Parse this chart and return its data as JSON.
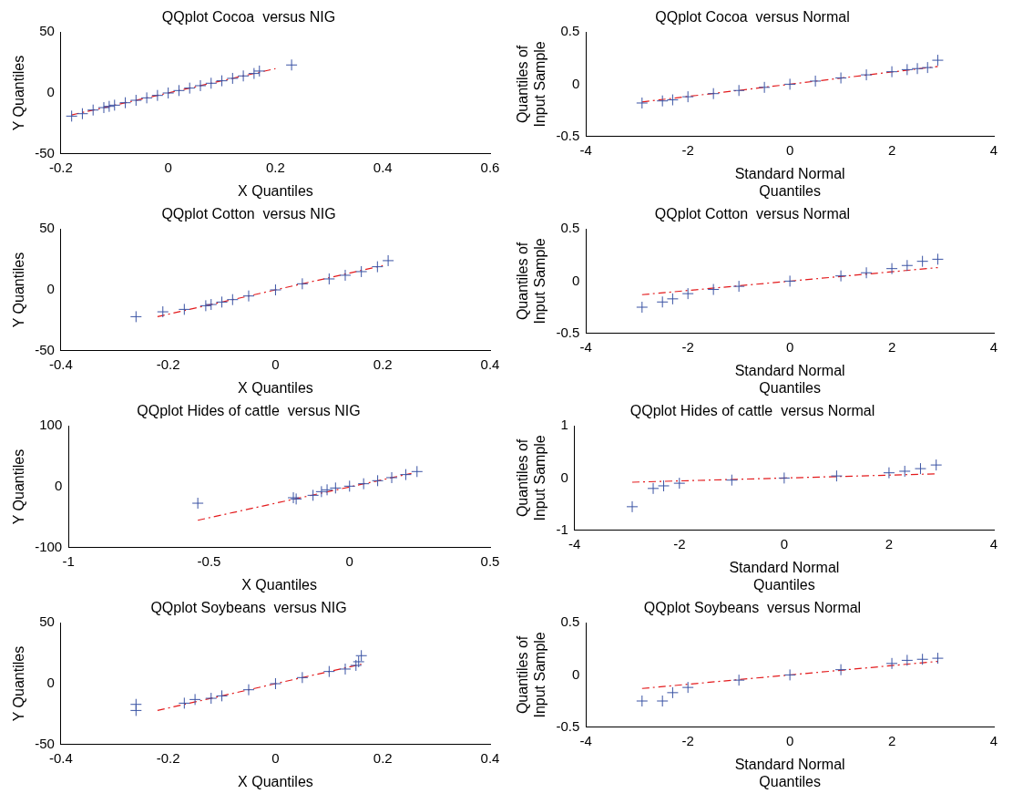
{
  "chart_data": [
    {
      "type": "scatter",
      "title": "QQplot Cocoa  versus NIG",
      "xlabel": "X Quantiles",
      "ylabel": "Y Quantiles",
      "xlim": [
        -0.2,
        0.6
      ],
      "ylim": [
        -50,
        50
      ],
      "xticks": [
        -0.2,
        0,
        0.2,
        0.4,
        0.6
      ],
      "yticks": [
        -50,
        0,
        50
      ],
      "series": [
        {
          "type": "scatter",
          "marker": "cross",
          "color": "#3a53a4",
          "x": [
            -0.18,
            -0.16,
            -0.14,
            -0.12,
            -0.11,
            -0.1,
            -0.08,
            -0.06,
            -0.04,
            -0.02,
            0,
            0.02,
            0.04,
            0.06,
            0.08,
            0.1,
            0.12,
            0.14,
            0.16,
            0.17,
            0.23
          ],
          "values": [
            -19,
            -17,
            -14,
            -12,
            -11,
            -10,
            -8,
            -6,
            -4,
            -2,
            0,
            2,
            4,
            6,
            8,
            10,
            12,
            14,
            16,
            18,
            23
          ]
        },
        {
          "type": "line",
          "marker": "none",
          "line_style": "dashed",
          "color": "#e31a1c",
          "x": [
            -0.18,
            0.2
          ],
          "values": [
            -18,
            20
          ]
        }
      ]
    },
    {
      "type": "scatter",
      "title": "QQplot Cocoa  versus Normal",
      "xlabel": "Standard Normal Quantiles",
      "ylabel": "Quantiles of Input Sample",
      "xlim": [
        -4,
        4
      ],
      "ylim": [
        -0.5,
        0.5
      ],
      "xticks": [
        -4,
        -2,
        0,
        2,
        4
      ],
      "yticks": [
        -0.5,
        0,
        0.5
      ],
      "series": [
        {
          "type": "scatter",
          "marker": "cross",
          "color": "#3a53a4",
          "x": [
            -2.9,
            -2.5,
            -2.3,
            -2,
            -1.5,
            -1,
            -0.5,
            0,
            0.5,
            1,
            1.5,
            2,
            2.3,
            2.5,
            2.7,
            2.9
          ],
          "values": [
            -0.18,
            -0.16,
            -0.15,
            -0.12,
            -0.09,
            -0.06,
            -0.03,
            0,
            0.03,
            0.06,
            0.09,
            0.12,
            0.14,
            0.15,
            0.16,
            0.23
          ]
        },
        {
          "type": "line",
          "marker": "none",
          "line_style": "dashed",
          "color": "#e31a1c",
          "x": [
            -2.9,
            2.9
          ],
          "values": [
            -0.17,
            0.17
          ]
        }
      ]
    },
    {
      "type": "scatter",
      "title": "QQplot Cotton  versus NIG",
      "xlabel": "X Quantiles",
      "ylabel": "Y Quantiles",
      "xlim": [
        -0.4,
        0.4
      ],
      "ylim": [
        -50,
        50
      ],
      "xticks": [
        -0.4,
        -0.2,
        0,
        0.2,
        0.4
      ],
      "yticks": [
        -50,
        0,
        50
      ],
      "series": [
        {
          "type": "scatter",
          "marker": "cross",
          "color": "#3a53a4",
          "x": [
            -0.26,
            -0.21,
            -0.17,
            -0.13,
            -0.12,
            -0.1,
            -0.08,
            -0.05,
            0,
            0.05,
            0.1,
            0.13,
            0.16,
            0.19,
            0.21
          ],
          "values": [
            -22,
            -18,
            -16,
            -13,
            -12,
            -10,
            -8,
            -5,
            0,
            5,
            9,
            12,
            15,
            19,
            24
          ]
        },
        {
          "type": "line",
          "marker": "none",
          "line_style": "dashed",
          "color": "#e31a1c",
          "x": [
            -0.22,
            0.2
          ],
          "values": [
            -22,
            20
          ]
        }
      ]
    },
    {
      "type": "scatter",
      "title": "QQplot Cotton  versus Normal",
      "xlabel": "Standard Normal Quantiles",
      "ylabel": "Quantiles of Input Sample",
      "xlim": [
        -4,
        4
      ],
      "ylim": [
        -0.5,
        0.5
      ],
      "xticks": [
        -4,
        -2,
        0,
        2,
        4
      ],
      "yticks": [
        -0.5,
        0,
        0.5
      ],
      "series": [
        {
          "type": "scatter",
          "marker": "cross",
          "color": "#3a53a4",
          "x": [
            -2.9,
            -2.5,
            -2.3,
            -2,
            -1.5,
            -1,
            0,
            1,
            1.5,
            2,
            2.3,
            2.6,
            2.9
          ],
          "values": [
            -0.25,
            -0.2,
            -0.17,
            -0.12,
            -0.08,
            -0.05,
            0,
            0.05,
            0.08,
            0.12,
            0.15,
            0.19,
            0.21
          ]
        },
        {
          "type": "line",
          "marker": "none",
          "line_style": "dashed",
          "color": "#e31a1c",
          "x": [
            -2.9,
            2.9
          ],
          "values": [
            -0.13,
            0.13
          ]
        }
      ]
    },
    {
      "type": "scatter",
      "title": "QQplot Hides of cattle  versus NIG",
      "xlabel": "X Quantiles",
      "ylabel": "Y Quantiles",
      "xlim": [
        -1,
        0.5
      ],
      "ylim": [
        -100,
        100
      ],
      "xticks": [
        -1,
        -0.5,
        0,
        0.5
      ],
      "yticks": [
        -100,
        0,
        100
      ],
      "series": [
        {
          "type": "scatter",
          "marker": "cross",
          "color": "#3a53a4",
          "x": [
            -0.54,
            -0.2,
            -0.19,
            -0.13,
            -0.1,
            -0.08,
            -0.05,
            0,
            0.05,
            0.1,
            0.15,
            0.2,
            0.24
          ],
          "values": [
            -27,
            -18,
            -20,
            -14,
            -8,
            -5,
            -2,
            1,
            5,
            10,
            15,
            20,
            25
          ]
        },
        {
          "type": "line",
          "marker": "none",
          "line_style": "dashed",
          "color": "#e31a1c",
          "x": [
            -0.54,
            0.22
          ],
          "values": [
            -55,
            22
          ]
        }
      ]
    },
    {
      "type": "scatter",
      "title": "QQplot Hides of cattle  versus Normal",
      "xlabel": "Standard Normal Quantiles",
      "ylabel": "Quantiles of Input Sample",
      "xlim": [
        -4,
        4
      ],
      "ylim": [
        -1,
        1
      ],
      "xticks": [
        -4,
        -2,
        0,
        2,
        4
      ],
      "yticks": [
        -1,
        0,
        1
      ],
      "series": [
        {
          "type": "scatter",
          "marker": "cross",
          "color": "#3a53a4",
          "x": [
            -2.9,
            -2.5,
            -2.3,
            -2,
            -1,
            0,
            1,
            2,
            2.3,
            2.6,
            2.9
          ],
          "values": [
            -0.55,
            -0.2,
            -0.15,
            -0.1,
            -0.04,
            0,
            0.04,
            0.1,
            0.13,
            0.18,
            0.25
          ]
        },
        {
          "type": "line",
          "marker": "none",
          "line_style": "dashed",
          "color": "#e31a1c",
          "x": [
            -2.9,
            2.9
          ],
          "values": [
            -0.08,
            0.08
          ]
        }
      ]
    },
    {
      "type": "scatter",
      "title": "QQplot Soybeans  versus NIG",
      "xlabel": "X Quantiles",
      "ylabel": "Y Quantiles",
      "xlim": [
        -0.4,
        0.4
      ],
      "ylim": [
        -50,
        50
      ],
      "xticks": [
        -0.4,
        -0.2,
        0,
        0.2,
        0.4
      ],
      "yticks": [
        -50,
        0,
        50
      ],
      "series": [
        {
          "type": "scatter",
          "marker": "cross",
          "color": "#3a53a4",
          "x": [
            -0.26,
            -0.26,
            -0.17,
            -0.15,
            -0.12,
            -0.1,
            -0.05,
            0,
            0.05,
            0.1,
            0.13,
            0.15,
            0.155,
            0.16
          ],
          "values": [
            -22,
            -17,
            -16,
            -13,
            -12,
            -10,
            -5,
            0,
            5,
            10,
            12,
            15,
            18,
            23
          ]
        },
        {
          "type": "line",
          "marker": "none",
          "line_style": "dashed",
          "color": "#e31a1c",
          "x": [
            -0.22,
            0.16
          ],
          "values": [
            -22,
            16
          ]
        }
      ]
    },
    {
      "type": "scatter",
      "title": "QQplot Soybeans  versus Normal",
      "xlabel": "Standard Normal Quantiles",
      "ylabel": "Quantiles of Input Sample",
      "xlim": [
        -4,
        4
      ],
      "ylim": [
        -0.5,
        0.5
      ],
      "xticks": [
        -4,
        -2,
        0,
        2,
        4
      ],
      "yticks": [
        -0.5,
        0,
        0.5
      ],
      "series": [
        {
          "type": "scatter",
          "marker": "cross",
          "color": "#3a53a4",
          "x": [
            -2.9,
            -2.5,
            -2.3,
            -2,
            -1,
            0,
            1,
            2,
            2.3,
            2.6,
            2.9
          ],
          "values": [
            -0.25,
            -0.25,
            -0.17,
            -0.12,
            -0.05,
            0,
            0.05,
            0.11,
            0.14,
            0.15,
            0.16
          ]
        },
        {
          "type": "line",
          "marker": "none",
          "line_style": "dashed",
          "color": "#e31a1c",
          "x": [
            -2.9,
            2.9
          ],
          "values": [
            -0.13,
            0.13
          ]
        }
      ]
    }
  ]
}
